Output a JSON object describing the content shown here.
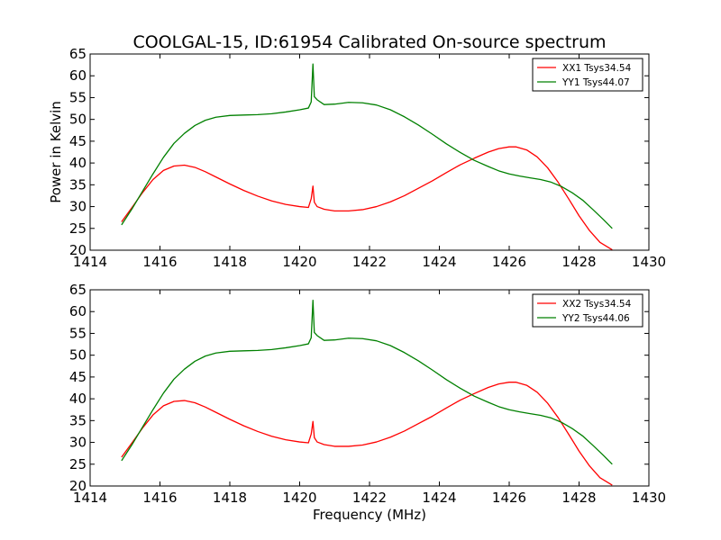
{
  "figure": {
    "title": "COOLGAL-15, ID:61954 Calibrated On-source spectrum",
    "xlabel": "Frequency (MHz)",
    "ylabel": "Power in Kelvin"
  },
  "chart_data": [
    {
      "type": "line",
      "title": "COOLGAL-15, ID:61954 Calibrated On-source spectrum",
      "xlabel": "",
      "ylabel": "Power in Kelvin",
      "xlim": [
        1414,
        1430
      ],
      "ylim": [
        20,
        65
      ],
      "xticks": [
        1414,
        1416,
        1418,
        1420,
        1422,
        1424,
        1426,
        1428,
        1430
      ],
      "yticks": [
        20,
        25,
        30,
        35,
        40,
        45,
        50,
        55,
        60,
        65
      ],
      "legend_position": "top-right",
      "grid": false,
      "series": [
        {
          "name": "XX1 Tsys34.54",
          "color": "#ff0000",
          "x": [
            1414.9,
            1415.2,
            1415.5,
            1415.8,
            1416.1,
            1416.4,
            1416.7,
            1417.0,
            1417.3,
            1417.6,
            1418.0,
            1418.4,
            1418.8,
            1419.2,
            1419.6,
            1420.0,
            1420.25,
            1420.33,
            1420.38,
            1420.42,
            1420.5,
            1420.7,
            1421.0,
            1421.4,
            1421.8,
            1422.2,
            1422.6,
            1423.0,
            1423.4,
            1423.8,
            1424.2,
            1424.6,
            1425.0,
            1425.4,
            1425.7,
            1426.0,
            1426.2,
            1426.5,
            1426.8,
            1427.1,
            1427.4,
            1427.7,
            1428.0,
            1428.3,
            1428.6,
            1428.95
          ],
          "y": [
            26.5,
            29.8,
            33.2,
            36.2,
            38.3,
            39.3,
            39.5,
            39.0,
            38.0,
            36.8,
            35.2,
            33.7,
            32.4,
            31.3,
            30.5,
            30.0,
            29.8,
            31.8,
            34.7,
            31.0,
            30.0,
            29.4,
            29.0,
            29.0,
            29.3,
            30.0,
            31.1,
            32.5,
            34.2,
            35.9,
            37.8,
            39.6,
            41.1,
            42.5,
            43.3,
            43.7,
            43.7,
            43.0,
            41.4,
            38.9,
            35.6,
            31.8,
            27.9,
            24.5,
            21.8,
            20.1
          ]
        },
        {
          "name": "YY1 Tsys44.07",
          "color": "#008000",
          "x": [
            1414.9,
            1415.2,
            1415.5,
            1415.8,
            1416.1,
            1416.4,
            1416.7,
            1417.0,
            1417.3,
            1417.6,
            1418.0,
            1418.4,
            1418.8,
            1419.2,
            1419.6,
            1420.0,
            1420.25,
            1420.33,
            1420.38,
            1420.42,
            1420.5,
            1420.7,
            1421.0,
            1421.4,
            1421.8,
            1422.2,
            1422.6,
            1423.0,
            1423.4,
            1423.8,
            1424.2,
            1424.6,
            1425.0,
            1425.4,
            1425.7,
            1426.0,
            1426.3,
            1426.6,
            1426.9,
            1427.2,
            1427.5,
            1427.8,
            1428.1,
            1428.4,
            1428.7,
            1428.95
          ],
          "y": [
            25.8,
            29.5,
            33.5,
            37.5,
            41.3,
            44.5,
            46.8,
            48.6,
            49.8,
            50.5,
            50.9,
            51.0,
            51.1,
            51.3,
            51.7,
            52.2,
            52.6,
            54.0,
            62.7,
            55.2,
            54.5,
            53.4,
            53.5,
            53.9,
            53.8,
            53.3,
            52.2,
            50.6,
            48.7,
            46.6,
            44.4,
            42.4,
            40.6,
            39.2,
            38.2,
            37.5,
            37.0,
            36.6,
            36.2,
            35.6,
            34.6,
            33.2,
            31.5,
            29.3,
            27.0,
            25.0
          ]
        }
      ]
    },
    {
      "type": "line",
      "title": "",
      "xlabel": "Frequency (MHz)",
      "ylabel": "",
      "xlim": [
        1414,
        1430
      ],
      "ylim": [
        20,
        65
      ],
      "xticks": [
        1414,
        1416,
        1418,
        1420,
        1422,
        1424,
        1426,
        1428,
        1430
      ],
      "yticks": [
        20,
        25,
        30,
        35,
        40,
        45,
        50,
        55,
        60,
        65
      ],
      "legend_position": "top-right",
      "grid": false,
      "series": [
        {
          "name": "XX2 Tsys34.54",
          "color": "#ff0000",
          "x": [
            1414.9,
            1415.2,
            1415.5,
            1415.8,
            1416.1,
            1416.4,
            1416.7,
            1417.0,
            1417.3,
            1417.6,
            1418.0,
            1418.4,
            1418.8,
            1419.2,
            1419.6,
            1420.0,
            1420.25,
            1420.33,
            1420.38,
            1420.42,
            1420.5,
            1420.7,
            1421.0,
            1421.4,
            1421.8,
            1422.2,
            1422.6,
            1423.0,
            1423.4,
            1423.8,
            1424.2,
            1424.6,
            1425.0,
            1425.4,
            1425.7,
            1426.0,
            1426.2,
            1426.5,
            1426.8,
            1427.1,
            1427.4,
            1427.7,
            1428.0,
            1428.3,
            1428.6,
            1428.95
          ],
          "y": [
            26.6,
            29.9,
            33.3,
            36.3,
            38.4,
            39.4,
            39.6,
            39.1,
            38.1,
            36.9,
            35.3,
            33.8,
            32.5,
            31.4,
            30.6,
            30.1,
            29.9,
            31.9,
            34.8,
            31.1,
            30.1,
            29.5,
            29.1,
            29.1,
            29.4,
            30.1,
            31.2,
            32.6,
            34.3,
            36.0,
            37.9,
            39.7,
            41.2,
            42.6,
            43.4,
            43.8,
            43.8,
            43.1,
            41.5,
            39.0,
            35.7,
            31.9,
            28.0,
            24.6,
            21.9,
            20.2
          ]
        },
        {
          "name": "YY2 Tsys44.06",
          "color": "#008000",
          "x": [
            1414.9,
            1415.2,
            1415.5,
            1415.8,
            1416.1,
            1416.4,
            1416.7,
            1417.0,
            1417.3,
            1417.6,
            1418.0,
            1418.4,
            1418.8,
            1419.2,
            1419.6,
            1420.0,
            1420.25,
            1420.33,
            1420.38,
            1420.42,
            1420.5,
            1420.7,
            1421.0,
            1421.4,
            1421.8,
            1422.2,
            1422.6,
            1423.0,
            1423.4,
            1423.8,
            1424.2,
            1424.6,
            1425.0,
            1425.4,
            1425.7,
            1426.0,
            1426.3,
            1426.6,
            1426.9,
            1427.2,
            1427.5,
            1427.8,
            1428.1,
            1428.4,
            1428.7,
            1428.95
          ],
          "y": [
            25.8,
            29.5,
            33.5,
            37.5,
            41.3,
            44.5,
            46.8,
            48.6,
            49.8,
            50.5,
            50.9,
            51.0,
            51.1,
            51.3,
            51.7,
            52.2,
            52.6,
            54.0,
            62.6,
            55.2,
            54.5,
            53.4,
            53.5,
            53.9,
            53.8,
            53.3,
            52.2,
            50.6,
            48.7,
            46.6,
            44.4,
            42.4,
            40.6,
            39.2,
            38.2,
            37.5,
            37.0,
            36.6,
            36.2,
            35.6,
            34.6,
            33.2,
            31.5,
            29.3,
            27.0,
            25.0
          ]
        }
      ]
    }
  ]
}
